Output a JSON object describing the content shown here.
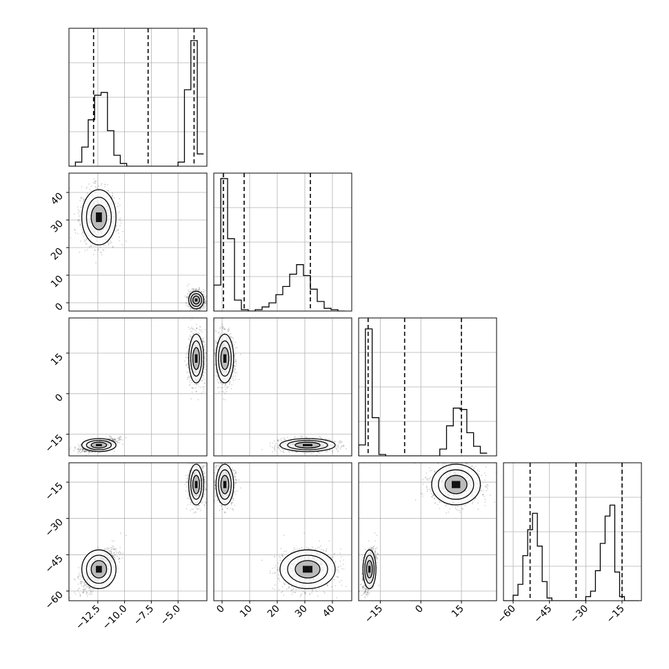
{
  "chart_data": {
    "type": "corner",
    "title": "",
    "grid": true,
    "n_params": 4,
    "params": [
      {
        "range": [
          -15.2,
          -2.3
        ],
        "ticks": [
          -12.5,
          -10.0,
          -7.5,
          -5.0
        ],
        "tick_labels": [
          "−12.5",
          "−10.0",
          "−7.5",
          "−5.0"
        ],
        "quantiles": [
          -12.9,
          -7.8,
          -3.5
        ],
        "hist": {
          "edges": [
            -15.2,
            -14.6,
            -14.0,
            -13.4,
            -12.8,
            -12.2,
            -11.6,
            -11.0,
            -10.4,
            -9.8,
            -9.2,
            -8.6,
            -8.0,
            -7.4,
            -6.8,
            -6.2,
            -5.6,
            -5.0,
            -4.4,
            -3.8,
            -3.2,
            -2.6
          ],
          "counts": [
            0.0,
            0.03,
            0.14,
            0.34,
            0.52,
            0.54,
            0.26,
            0.08,
            0.02,
            0.0,
            0.0,
            0.0,
            0.0,
            0.0,
            0.0,
            0.0,
            0.0,
            0.03,
            0.56,
            0.92,
            0.09
          ]
        }
      },
      {
        "range": [
          -3,
          47
        ],
        "ticks": [
          0,
          10,
          20,
          30,
          40
        ],
        "tick_labels": [
          "0",
          "10",
          "20",
          "30",
          "40"
        ],
        "quantiles": [
          0.5,
          8.0,
          32.0
        ],
        "hist": {
          "edges": [
            -3,
            -0.5,
            2,
            4.5,
            7,
            9.5,
            12,
            14.5,
            17,
            19.5,
            22,
            24.5,
            27,
            29.5,
            32,
            34.5,
            37,
            39.5,
            42,
            44.5
          ],
          "counts": [
            0.19,
            0.97,
            0.53,
            0.08,
            0.01,
            0.0,
            0.01,
            0.03,
            0.06,
            0.12,
            0.18,
            0.27,
            0.34,
            0.26,
            0.16,
            0.07,
            0.02,
            0.01,
            0.0
          ]
        }
      },
      {
        "range": [
          -23,
          28
        ],
        "ticks": [
          -15,
          0,
          15
        ],
        "tick_labels": [
          "−15",
          "0",
          "15"
        ],
        "quantiles": [
          -19.5,
          -6.0,
          15.0
        ],
        "hist": {
          "edges": [
            -23,
            -20.5,
            -18,
            -15.5,
            -13,
            -10.5,
            -8,
            -5.5,
            -3,
            -0.5,
            2,
            4.5,
            7,
            9.5,
            12,
            14.5,
            17,
            19.5,
            22,
            24.5
          ],
          "counts": [
            0.08,
            0.93,
            0.28,
            0.01,
            0.0,
            0.0,
            0.0,
            0.0,
            0.0,
            0.0,
            0.0,
            0.0,
            0.05,
            0.22,
            0.35,
            0.34,
            0.17,
            0.07,
            0.02
          ]
        }
      },
      {
        "range": [
          -64,
          -7
        ],
        "ticks": [
          -60,
          -45,
          -30,
          -15
        ],
        "tick_labels": [
          "−60",
          "−45",
          "−30",
          "−15"
        ],
        "quantiles": [
          -53,
          -34,
          -15
        ],
        "hist": {
          "edges": [
            -64,
            -62,
            -60,
            -58,
            -56,
            -54,
            -52,
            -50,
            -48,
            -46,
            -44,
            -42,
            -40,
            -38,
            -36,
            -34,
            -32,
            -30,
            -28,
            -26,
            -24,
            -22,
            -20,
            -18,
            -16,
            -14,
            -12,
            -10,
            -8
          ],
          "counts": [
            0.0,
            0.0,
            0.04,
            0.12,
            0.33,
            0.52,
            0.64,
            0.4,
            0.14,
            0.02,
            0.0,
            0.0,
            0.0,
            0.0,
            0.0,
            0.0,
            0.0,
            0.03,
            0.07,
            0.22,
            0.42,
            0.62,
            0.7,
            0.21,
            0.03,
            0.0,
            0.0,
            0.0
          ]
        }
      }
    ],
    "clusters": [
      {
        "weight": 0.5,
        "means": [
          -12.4,
          31.0,
          -19.0,
          -51.0
        ],
        "sds": [
          0.8,
          5.0,
          1.2,
          4.0
        ]
      },
      {
        "weight": 0.5,
        "means": [
          -3.3,
          1.0,
          13.0,
          -16.0
        ],
        "sds": [
          0.35,
          1.6,
          4.5,
          4.2
        ]
      }
    ]
  }
}
